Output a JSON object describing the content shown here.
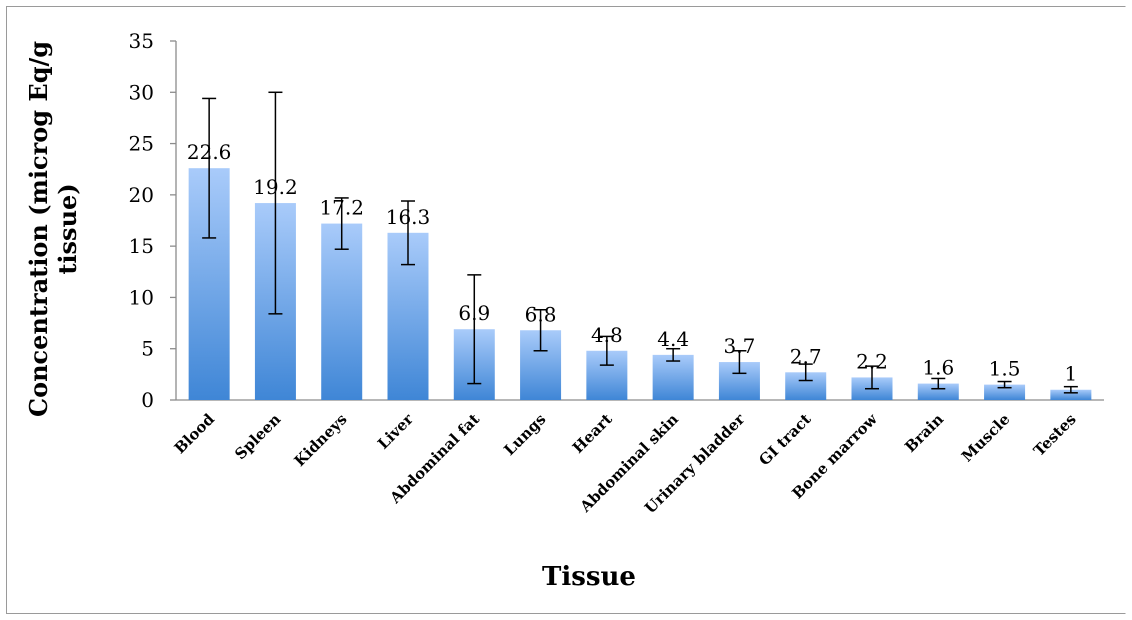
{
  "chart_data": {
    "type": "bar",
    "categories": [
      "Blood",
      "Spleen",
      "Kidneys",
      "Liver",
      "Abdominal fat",
      "Lungs",
      "Heart",
      "Abdominal skin",
      "Urinary bladder",
      "GI tract",
      "Bone marrow",
      "Brain",
      "Muscle",
      "Testes"
    ],
    "values": [
      22.6,
      19.2,
      17.2,
      16.3,
      6.9,
      6.8,
      4.8,
      4.4,
      3.7,
      2.7,
      2.2,
      1.6,
      1.5,
      1
    ],
    "value_labels": [
      "22.6",
      "19.2",
      "17.2",
      "16.3",
      "6.9",
      "6.8",
      "4.8",
      "4.4",
      "3.7",
      "2.7",
      "2.2",
      "1.6",
      "1.5",
      "1"
    ],
    "error": [
      6.8,
      10.8,
      2.5,
      3.1,
      5.3,
      2.0,
      1.4,
      0.6,
      1.1,
      0.8,
      1.1,
      0.5,
      0.3,
      0.3
    ],
    "title": "",
    "xlabel": "Tissue",
    "ylabel_lines": [
      "Concentration (microg Eq/g",
      "tissue)"
    ],
    "ylim": [
      0,
      35
    ],
    "yticks": [
      "0",
      "5",
      "10",
      "15",
      "20",
      "25",
      "30",
      "35"
    ],
    "grid": false,
    "legend": "none",
    "colors": {
      "bar_top": "#a9cbfa",
      "bar_bottom": "#3f86d6",
      "axis": "#8c8c8c",
      "error_bar": "#000000"
    }
  }
}
